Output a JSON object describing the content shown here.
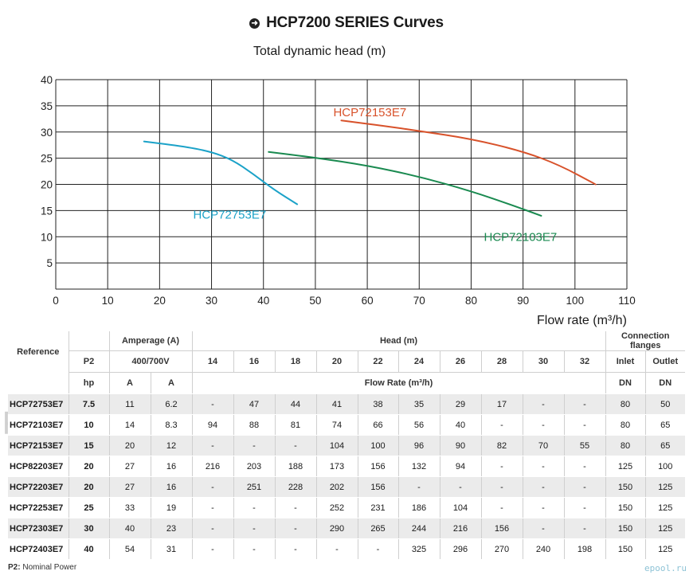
{
  "title": "HCP7200 SERIES Curves",
  "chart_data": {
    "type": "line",
    "ylabel": "Total dynamic head (m)",
    "xlabel": "Flow rate (m³/h)",
    "xlim": [
      0,
      110
    ],
    "ylim": [
      0,
      40
    ],
    "x_ticks": [
      0,
      10,
      20,
      30,
      40,
      50,
      60,
      70,
      80,
      90,
      100,
      110
    ],
    "y_ticks": [
      5,
      10,
      15,
      20,
      25,
      30,
      35,
      40
    ],
    "grid": true,
    "series": [
      {
        "name": "HCP72753E7",
        "color": "#1ba2c8",
        "points": [
          [
            17,
            28.2
          ],
          [
            25,
            27.2
          ],
          [
            30,
            26.2
          ],
          [
            34,
            24.7
          ],
          [
            38,
            22
          ],
          [
            42,
            19
          ],
          [
            46.5,
            16.2
          ]
        ]
      },
      {
        "name": "HCP72103E7",
        "color": "#1a8a50",
        "points": [
          [
            41,
            26.2
          ],
          [
            50,
            25.1
          ],
          [
            60,
            23.6
          ],
          [
            70,
            21.5
          ],
          [
            80,
            18.7
          ],
          [
            88,
            16
          ],
          [
            93.5,
            14
          ]
        ]
      },
      {
        "name": "HCP72153E7",
        "color": "#d8522b",
        "points": [
          [
            55,
            32.2
          ],
          [
            63,
            31.2
          ],
          [
            70,
            30.2
          ],
          [
            80,
            28.7
          ],
          [
            90,
            26.3
          ],
          [
            97,
            23.7
          ],
          [
            104,
            20
          ]
        ]
      }
    ]
  },
  "table": {
    "top_headers": {
      "amperage": "Amperage (A)",
      "head": "Head (m)",
      "connection": "Connection flanges"
    },
    "second_headers": {
      "reference": "Reference",
      "p2": "P2",
      "voltage": "400/700V",
      "heads": [
        "14",
        "16",
        "18",
        "20",
        "22",
        "24",
        "26",
        "28",
        "30",
        "32"
      ],
      "inlet": "Inlet",
      "outlet": "Outlet"
    },
    "third_headers": {
      "hp": "hp",
      "a1": "A",
      "a2": "A",
      "flow_rate": "Flow Rate (m³/h)",
      "dn1": "DN",
      "dn2": "DN"
    },
    "rows": [
      [
        "HCP72753E7",
        "7.5",
        "11",
        "6.2",
        "-",
        "47",
        "44",
        "41",
        "38",
        "35",
        "29",
        "17",
        "-",
        "-",
        "80",
        "50"
      ],
      [
        "HCP72103E7",
        "10",
        "14",
        "8.3",
        "94",
        "88",
        "81",
        "74",
        "66",
        "56",
        "40",
        "-",
        "-",
        "-",
        "80",
        "65"
      ],
      [
        "HCP72153E7",
        "15",
        "20",
        "12",
        "-",
        "-",
        "-",
        "104",
        "100",
        "96",
        "90",
        "82",
        "70",
        "55",
        "80",
        "65"
      ],
      [
        "HCP82203E7",
        "20",
        "27",
        "16",
        "216",
        "203",
        "188",
        "173",
        "156",
        "132",
        "94",
        "-",
        "-",
        "-",
        "125",
        "100"
      ],
      [
        "HCP72203E7",
        "20",
        "27",
        "16",
        "-",
        "251",
        "228",
        "202",
        "156",
        "-",
        "-",
        "-",
        "-",
        "-",
        "150",
        "125"
      ],
      [
        "HCP72253E7",
        "25",
        "33",
        "19",
        "-",
        "-",
        "-",
        "252",
        "231",
        "186",
        "104",
        "-",
        "-",
        "-",
        "150",
        "125"
      ],
      [
        "HCP72303E7",
        "30",
        "40",
        "23",
        "-",
        "-",
        "-",
        "290",
        "265",
        "244",
        "216",
        "156",
        "-",
        "-",
        "150",
        "125"
      ],
      [
        "HCP72403E7",
        "40",
        "54",
        "31",
        "-",
        "-",
        "-",
        "-",
        "-",
        "325",
        "296",
        "270",
        "240",
        "198",
        "150",
        "125"
      ]
    ]
  },
  "footnote": {
    "key": "P2:",
    "text": "Nominal Power"
  },
  "watermark": "ePool.ru",
  "brand": "epool.ru"
}
